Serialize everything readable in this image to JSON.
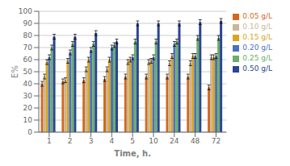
{
  "chart_data": {
    "type": "bar",
    "xlabel": "Time, h.",
    "ylabel": "E%",
    "categories": [
      "1",
      "2",
      "3",
      "4",
      "5",
      "10",
      "24",
      "48",
      "72"
    ],
    "series": [
      {
        "name": "0.05 g/L",
        "color": "#D2691E",
        "values": [
          40,
          42,
          43,
          44,
          46,
          46,
          46,
          46,
          37
        ],
        "errors": [
          2,
          2,
          2,
          2,
          2,
          2,
          2,
          2,
          2
        ]
      },
      {
        "name": "0.10 g/L",
        "color": "#C8B89A",
        "values": [
          46,
          43,
          52,
          52,
          58,
          58,
          57,
          57,
          62
        ],
        "errors": [
          2,
          2,
          2,
          2,
          2,
          2,
          2,
          2,
          2
        ]
      },
      {
        "name": "0.15 g/L",
        "color": "#DAA520",
        "values": [
          58,
          59,
          60,
          60,
          60,
          59,
          63,
          63,
          62
        ],
        "errors": [
          2,
          2,
          2,
          2,
          2,
          2,
          2,
          2,
          2
        ]
      },
      {
        "name": "0.20 g/L",
        "color": "#4A70C4",
        "values": [
          62,
          66,
          68,
          70,
          62,
          62,
          73,
          63,
          63
        ],
        "errors": [
          2,
          2,
          2,
          2,
          2,
          2,
          2,
          2,
          2
        ]
      },
      {
        "name": "0.25 g/L",
        "color": "#6AAE6A",
        "values": [
          70,
          73,
          73,
          72,
          75,
          75,
          75,
          78,
          78
        ],
        "errors": [
          2,
          2,
          2,
          2,
          2,
          2,
          2,
          2,
          2
        ]
      },
      {
        "name": "0.50 g/L",
        "color": "#2B4590",
        "values": [
          79,
          79,
          82,
          75,
          90,
          90,
          90,
          91,
          92
        ],
        "errors": [
          2,
          2,
          2,
          2,
          2,
          2,
          2,
          2,
          2
        ]
      }
    ],
    "ylim": [
      0,
      100
    ],
    "yticks": [
      0,
      10,
      20,
      30,
      40,
      50,
      60,
      70,
      80,
      90,
      100
    ],
    "grid": true,
    "legend": "upper right"
  }
}
